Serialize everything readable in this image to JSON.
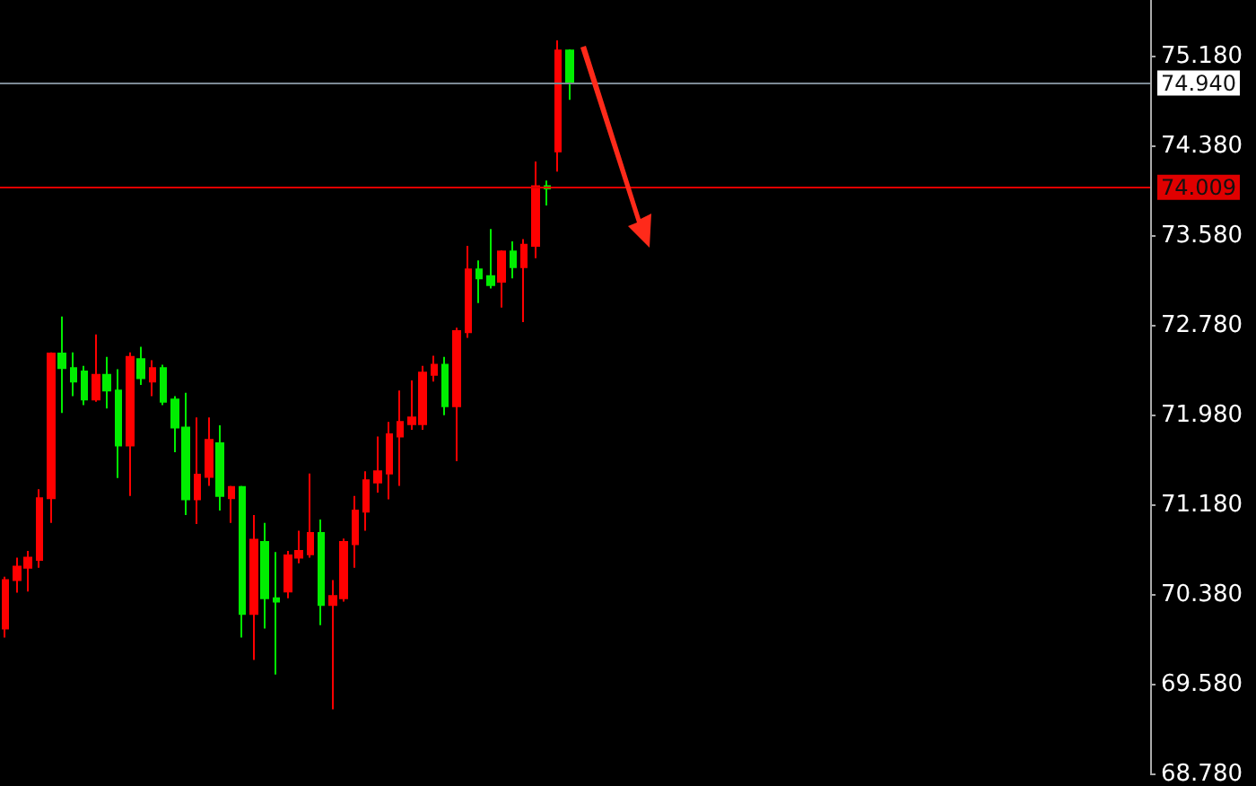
{
  "chart_data": {
    "type": "candlestick",
    "categories": [
      null,
      null,
      null,
      null,
      null,
      null,
      null,
      null,
      null,
      null,
      null,
      null,
      null,
      null,
      null,
      null,
      null,
      null,
      null,
      null,
      null,
      null,
      null,
      null,
      null,
      null,
      null,
      null,
      null,
      null,
      null,
      null,
      null,
      null,
      null,
      null,
      null,
      null,
      null,
      null,
      null,
      null,
      null,
      null,
      null,
      null,
      null,
      null,
      null,
      null,
      null,
      null,
      null,
      null,
      null,
      null,
      null,
      null,
      null,
      null,
      null,
      null,
      null,
      null,
      null,
      null,
      null,
      null,
      null,
      null,
      null,
      null,
      null,
      null,
      null,
      null,
      null,
      null,
      null,
      null,
      null,
      null,
      null,
      null,
      null,
      null,
      null,
      null,
      null,
      null,
      null,
      null,
      null,
      null,
      null,
      null,
      null,
      null,
      null,
      null,
      null,
      null
    ],
    "ohlc": [
      [
        70.08,
        70.54,
        70.0,
        70.51
      ],
      [
        70.51,
        70.71,
        70.4,
        70.63
      ],
      [
        70.62,
        70.77,
        70.41,
        70.71
      ],
      [
        70.69,
        71.32,
        70.62,
        71.24
      ],
      [
        71.24,
        72.54,
        71.02,
        72.53
      ],
      [
        72.53,
        72.86,
        72.0,
        72.4
      ],
      [
        72.4,
        72.54,
        72.15,
        72.28
      ],
      [
        72.37,
        72.42,
        72.07,
        72.12
      ],
      [
        72.12,
        72.7,
        72.1,
        72.34
      ],
      [
        72.34,
        72.5,
        72.04,
        72.2
      ],
      [
        72.2,
        72.39,
        71.42,
        71.71
      ],
      [
        71.71,
        72.54,
        71.26,
        72.5
      ],
      [
        72.48,
        72.59,
        72.25,
        72.31
      ],
      [
        72.28,
        72.47,
        72.15,
        72.4
      ],
      [
        72.4,
        72.43,
        72.07,
        72.1
      ],
      [
        72.12,
        72.15,
        71.65,
        71.87
      ],
      [
        71.87,
        72.18,
        71.09,
        71.23
      ],
      [
        71.23,
        71.96,
        71.01,
        71.45
      ],
      [
        71.43,
        71.96,
        71.35,
        71.76
      ],
      [
        71.73,
        71.89,
        71.13,
        71.26
      ],
      [
        71.24,
        71.35,
        71.02,
        71.34
      ],
      [
        71.34,
        71.35,
        70.0,
        70.21
      ],
      [
        70.21,
        71.09,
        69.8,
        70.87
      ],
      [
        70.85,
        71.02,
        70.08,
        70.35
      ],
      [
        70.35,
        70.76,
        69.67,
        70.32
      ],
      [
        70.41,
        70.77,
        70.35,
        70.73
      ],
      [
        70.71,
        70.95,
        70.66,
        70.77
      ],
      [
        70.74,
        71.46,
        70.71,
        70.93
      ],
      [
        70.93,
        71.05,
        70.11,
        70.29
      ],
      [
        70.29,
        70.51,
        69.36,
        70.37
      ],
      [
        70.35,
        70.88,
        70.32,
        70.85
      ],
      [
        70.83,
        71.26,
        70.62,
        71.13
      ],
      [
        71.12,
        71.48,
        70.95,
        71.4
      ],
      [
        71.38,
        71.79,
        71.29,
        71.48
      ],
      [
        71.46,
        71.92,
        71.23,
        71.81
      ],
      [
        71.79,
        72.2,
        71.35,
        71.92
      ],
      [
        71.9,
        72.29,
        71.85,
        71.96
      ],
      [
        71.9,
        72.42,
        71.85,
        72.36
      ],
      [
        72.34,
        72.51,
        72.28,
        72.43
      ],
      [
        72.43,
        72.5,
        71.98,
        72.06
      ],
      [
        72.06,
        72.76,
        71.57,
        72.73
      ],
      [
        72.72,
        73.49,
        72.67,
        73.28
      ],
      [
        73.28,
        73.36,
        72.98,
        73.2
      ],
      [
        73.22,
        73.64,
        73.11,
        73.14
      ],
      [
        73.17,
        73.45,
        72.94,
        73.44
      ],
      [
        73.44,
        73.53,
        73.2,
        73.3
      ],
      [
        73.3,
        73.55,
        72.81,
        73.5
      ],
      [
        73.49,
        74.24,
        73.38,
        74.02
      ],
      [
        74.02,
        74.07,
        73.85,
        74.0
      ],
      [
        74.33,
        75.32,
        74.15,
        75.23
      ],
      [
        75.23,
        75.24,
        74.79,
        74.94
      ],
      null,
      null,
      null,
      null,
      null,
      null,
      null,
      null,
      null,
      null,
      null,
      null,
      null,
      null,
      null,
      null,
      null,
      null,
      null,
      null,
      null,
      null,
      null,
      null,
      null,
      null,
      null,
      null,
      null,
      null,
      null,
      null,
      null,
      null,
      null,
      null,
      null,
      null,
      null,
      null,
      null,
      null,
      null,
      null,
      null,
      null,
      null,
      null,
      null,
      null,
      null
    ],
    "colors": [
      "#ff0000",
      "#ff0000",
      "#ff0000",
      "#ff0000",
      "#ff0000",
      "#00ee00",
      "#00ee00",
      "#00ee00",
      "#ff0000",
      "#00ee00",
      "#00ee00",
      "#ff0000",
      "#00ee00",
      "#ff0000",
      "#00ee00",
      "#00ee00",
      "#00ee00",
      "#ff0000",
      "#ff0000",
      "#00ee00",
      "#ff0000",
      "#00ee00",
      "#ff0000",
      "#00ee00",
      "#00ee00",
      "#ff0000",
      "#ff0000",
      "#ff0000",
      "#00ee00",
      "#ff0000",
      "#ff0000",
      "#ff0000",
      "#ff0000",
      "#ff0000",
      "#ff0000",
      "#ff0000",
      "#ff0000",
      "#ff0000",
      "#ff0000",
      "#00ee00",
      "#ff0000",
      "#ff0000",
      "#00ee00",
      "#00ee00",
      "#ff0000",
      "#00ee00",
      "#ff0000",
      "#ff0000",
      "#00ee00",
      "#ff0000",
      "#00ee00",
      null,
      null,
      null,
      null,
      null,
      null,
      null,
      null,
      null,
      null,
      null,
      null,
      null,
      null,
      null,
      null,
      null,
      null,
      null,
      null,
      null,
      null,
      null,
      null,
      null,
      null,
      null,
      null,
      null,
      null,
      null,
      null,
      null,
      null,
      null,
      null,
      null,
      null,
      null,
      null,
      null,
      null,
      null,
      null,
      null,
      null,
      null,
      null,
      null,
      null,
      null
    ],
    "ylim": [
      68.78,
      75.68
    ],
    "yticks": [
      {
        "value": 68.78,
        "label": "68.780"
      },
      {
        "value": 69.58,
        "label": "69.580"
      },
      {
        "value": 70.38,
        "label": "70.380"
      },
      {
        "value": 71.18,
        "label": "71.180"
      },
      {
        "value": 71.98,
        "label": "71.980"
      },
      {
        "value": 72.78,
        "label": "72.780"
      },
      {
        "value": 73.58,
        "label": "73.580"
      },
      {
        "value": 74.38,
        "label": "74.380"
      },
      {
        "value": 75.18,
        "label": "75.180"
      }
    ],
    "ref_lines": [
      {
        "axis": "y",
        "value": 74.94,
        "label": "74.940",
        "color": "#7d8a96"
      },
      {
        "axis": "y",
        "value": 74.009,
        "label": "74.009",
        "color": "#e00000"
      }
    ],
    "tick_labels": "y",
    "grid": false
  }
}
